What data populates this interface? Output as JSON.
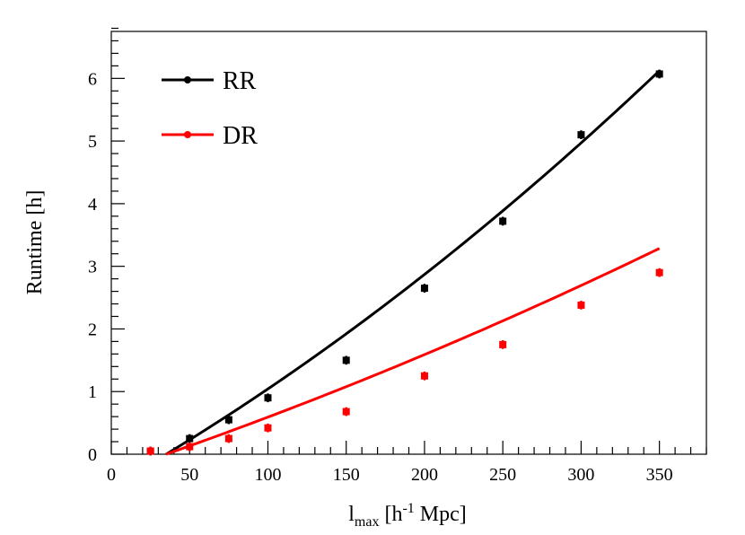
{
  "chart_data": {
    "type": "scatter",
    "title": "",
    "xlabel_main": "l",
    "xlabel_sub": "max",
    "xlabel_rest": " [h",
    "xlabel_sup": "-1",
    "xlabel_end": " Mpc]",
    "ylabel": "Runtime [h]",
    "xlim": [
      0,
      380
    ],
    "ylim": [
      0,
      6.75
    ],
    "x_ticks": [
      0,
      50,
      100,
      150,
      200,
      250,
      300,
      350
    ],
    "y_ticks": [
      0,
      1,
      2,
      3,
      4,
      5,
      6
    ],
    "x_minor_step": 10,
    "y_minor_step": 0.2,
    "legend_position": "top-left",
    "series": [
      {
        "name": "RR",
        "color": "#000000",
        "x": [
          25,
          50,
          75,
          100,
          150,
          200,
          250,
          300,
          350
        ],
        "y": [
          0.05,
          0.25,
          0.55,
          0.9,
          1.5,
          2.65,
          3.72,
          5.1,
          6.07
        ],
        "yerr": [
          0.07,
          0.07,
          0.07,
          0.07,
          0.07,
          0.07,
          0.07,
          0.07,
          0.07
        ],
        "fit": {
          "x_start": 35,
          "x_end": 350,
          "a": 1.36e-05,
          "b": 0.0142,
          "c": -0.514
        }
      },
      {
        "name": "DR",
        "color": "#ff0000",
        "x": [
          25,
          50,
          75,
          100,
          150,
          200,
          250,
          300,
          350
        ],
        "y": [
          0.05,
          0.12,
          0.25,
          0.42,
          0.68,
          1.25,
          1.75,
          2.38,
          2.9
        ],
        "yerr": [
          0.07,
          0.07,
          0.07,
          0.07,
          0.07,
          0.07,
          0.07,
          0.07,
          0.07
        ],
        "fit": {
          "x_start": 35,
          "x_end": 350,
          "a": 5.3e-06,
          "b": 0.00839,
          "c": -0.3
        }
      }
    ]
  }
}
